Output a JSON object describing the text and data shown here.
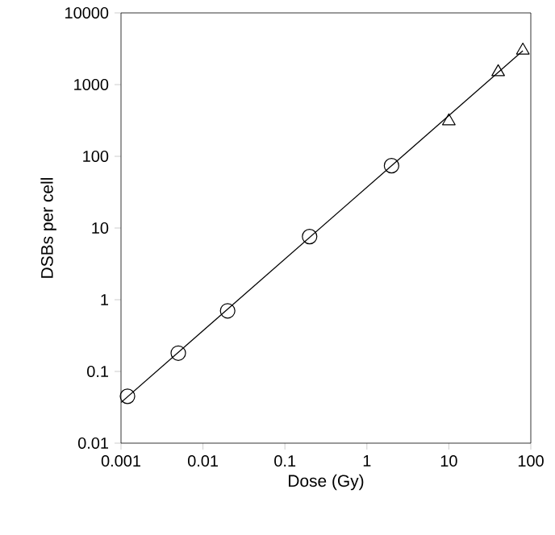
{
  "chart_data": {
    "type": "scatter",
    "xlabel": "Dose (Gy)",
    "ylabel": "DSBs per cell",
    "log": "xy",
    "xlim": [
      0.001,
      100
    ],
    "ylim": [
      0.01,
      10000
    ],
    "xticks": [
      0.001,
      0.01,
      0.1,
      1,
      10,
      100
    ],
    "yticks": [
      0.01,
      0.1,
      1,
      10,
      100,
      1000,
      10000
    ],
    "grid": false,
    "series": [
      {
        "marker": "circle",
        "color": "#000000",
        "x": [
          0.0012,
          0.005,
          0.02,
          0.2,
          2
        ],
        "values": [
          0.045,
          0.18,
          0.7,
          7.6,
          74
        ]
      },
      {
        "marker": "triangle",
        "color": "#000000",
        "x": [
          10,
          40,
          80
        ],
        "values": [
          310,
          1500,
          3000
        ]
      },
      {
        "type": "line",
        "marker": "none",
        "line_style": "solid",
        "color": "#000000",
        "x": [
          0.001,
          80
        ],
        "values": [
          0.037,
          2960
        ]
      }
    ]
  }
}
